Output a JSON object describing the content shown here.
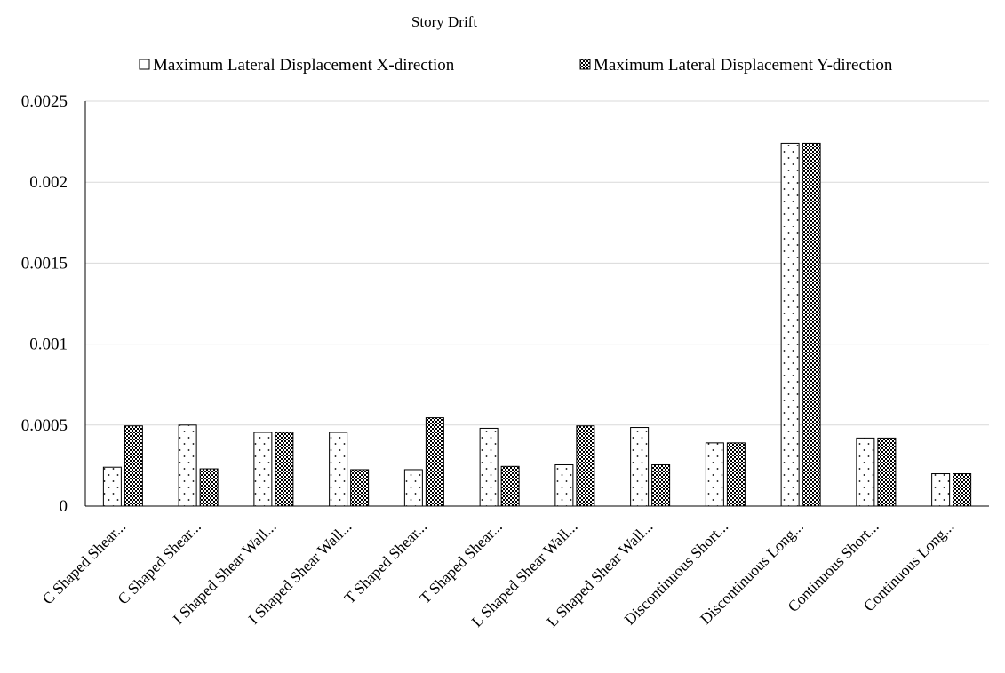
{
  "chart_data": {
    "type": "bar",
    "title": "Story Drift",
    "xlabel": "",
    "ylabel": "",
    "ylim": [
      0,
      0.0025
    ],
    "yticks": [
      "0",
      "0.0005",
      "0.001",
      "0.0015",
      "0.002",
      "0.0025"
    ],
    "grid": true,
    "legend_position": "top",
    "categories": [
      "C Shaped Shear...",
      "C Shaped Shear...",
      "I Shaped Shear Wall...",
      "I Shaped Shear Wall...",
      "T Shaped Shear...",
      "T Shaped Shear...",
      "L Shaped Shear Wall...",
      "L Shaped Shear Wall...",
      "Discontinuous Short...",
      "Discontinuous Long...",
      "Continuous Short...",
      "Continuous Long..."
    ],
    "series": [
      {
        "name": "Maximum Lateral Displacement X-direction",
        "pattern": "dots",
        "values": [
          0.00024,
          0.0005,
          0.000455,
          0.000455,
          0.000225,
          0.00048,
          0.000255,
          0.000485,
          0.00039,
          0.00224,
          0.00042,
          0.0002
        ]
      },
      {
        "name": "Maximum Lateral Displacement Y-direction",
        "pattern": "checker",
        "values": [
          0.000495,
          0.00023,
          0.000455,
          0.000225,
          0.000545,
          0.000245,
          0.000495,
          0.000255,
          0.00039,
          0.00224,
          0.00042,
          0.0002
        ]
      }
    ],
    "colors": {
      "bar_fill": "#ffffff",
      "bar_stroke": "#000000",
      "grid": "#d9d9d9",
      "axis": "#000000"
    }
  }
}
